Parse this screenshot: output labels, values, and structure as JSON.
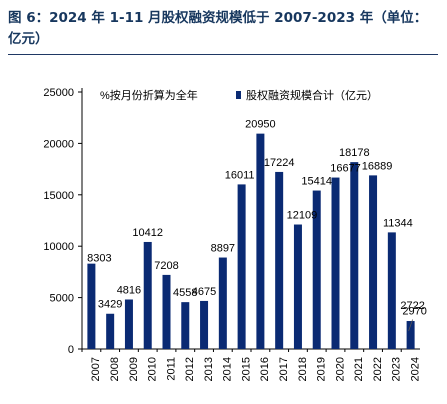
{
  "figure": {
    "title": "图 6：2024 年 1-11 月股权融资规模低于 2007-2023 年（单位：亿元）"
  },
  "chart_data": {
    "type": "bar",
    "categories": [
      "2007",
      "2008",
      "2009",
      "2010",
      "2011",
      "2012",
      "2013",
      "2014",
      "2015",
      "2016",
      "2017",
      "2018",
      "2019",
      "2020",
      "2021",
      "2022",
      "2023",
      "2024"
    ],
    "series": [
      {
        "name": "股权融资规模合计（亿元）",
        "color": "#0a2a73",
        "values": [
          8303,
          3429,
          4816,
          10412,
          7208,
          4558,
          4675,
          8897,
          16011,
          20950,
          17224,
          12109,
          15414,
          16677,
          18178,
          16889,
          11344,
          2722
        ]
      }
    ],
    "annualized": {
      "name": "%按月份折算为全年",
      "category": "2024",
      "value": 2970
    },
    "ylim": [
      0,
      25000
    ],
    "yticks": [
      0,
      5000,
      10000,
      15000,
      20000,
      25000
    ],
    "grid": false,
    "legend_position": "top"
  }
}
